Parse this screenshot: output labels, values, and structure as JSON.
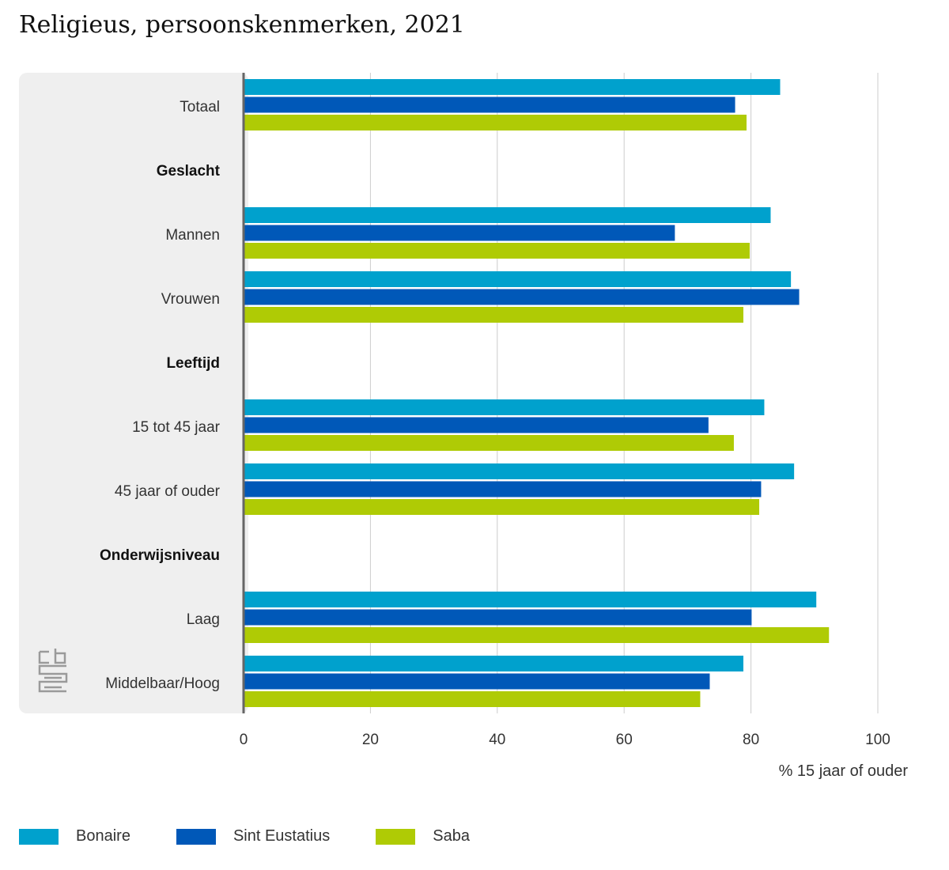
{
  "header": {
    "title": "Religieus, persoonskenmerken, 2021"
  },
  "icons": {
    "logo": "cbs-logo"
  },
  "colors": {
    "panel": "#efefef",
    "grid": "#cccccc",
    "axis": "#666666"
  },
  "chart_data": {
    "type": "bar",
    "orientation": "horizontal",
    "title": "Religieus, persoonskenmerken, 2021",
    "xlabel": "% 15 jaar of ouder",
    "ylabel": "",
    "xlim": [
      0,
      100
    ],
    "xticks": [
      0,
      20,
      40,
      60,
      80,
      100
    ],
    "grid": true,
    "legend_position": "bottom-left",
    "rows": [
      {
        "label": "Totaal",
        "kind": "category"
      },
      {
        "label": "Geslacht",
        "kind": "group"
      },
      {
        "label": "Mannen",
        "kind": "category"
      },
      {
        "label": "Vrouwen",
        "kind": "category"
      },
      {
        "label": "Leeftijd",
        "kind": "group"
      },
      {
        "label": "15 tot 45 jaar",
        "kind": "category"
      },
      {
        "label": "45 jaar of ouder",
        "kind": "category"
      },
      {
        "label": "Onderwijsniveau",
        "kind": "group"
      },
      {
        "label": "Laag",
        "kind": "category"
      },
      {
        "label": "Middelbaar/Hoog",
        "kind": "category"
      }
    ],
    "series": [
      {
        "name": "Bonaire",
        "color": "#00a1cd",
        "values": [
          84.6,
          null,
          83.1,
          86.3,
          null,
          82.1,
          86.8,
          null,
          90.3,
          78.8
        ]
      },
      {
        "name": "Sint Eustatius",
        "color": "#0058b8",
        "values": [
          77.5,
          null,
          68.0,
          87.6,
          null,
          73.3,
          81.6,
          null,
          80.1,
          73.5
        ]
      },
      {
        "name": "Saba",
        "color": "#afcb05",
        "values": [
          79.3,
          null,
          79.8,
          78.8,
          null,
          77.3,
          81.3,
          null,
          92.3,
          72.0
        ]
      }
    ]
  }
}
